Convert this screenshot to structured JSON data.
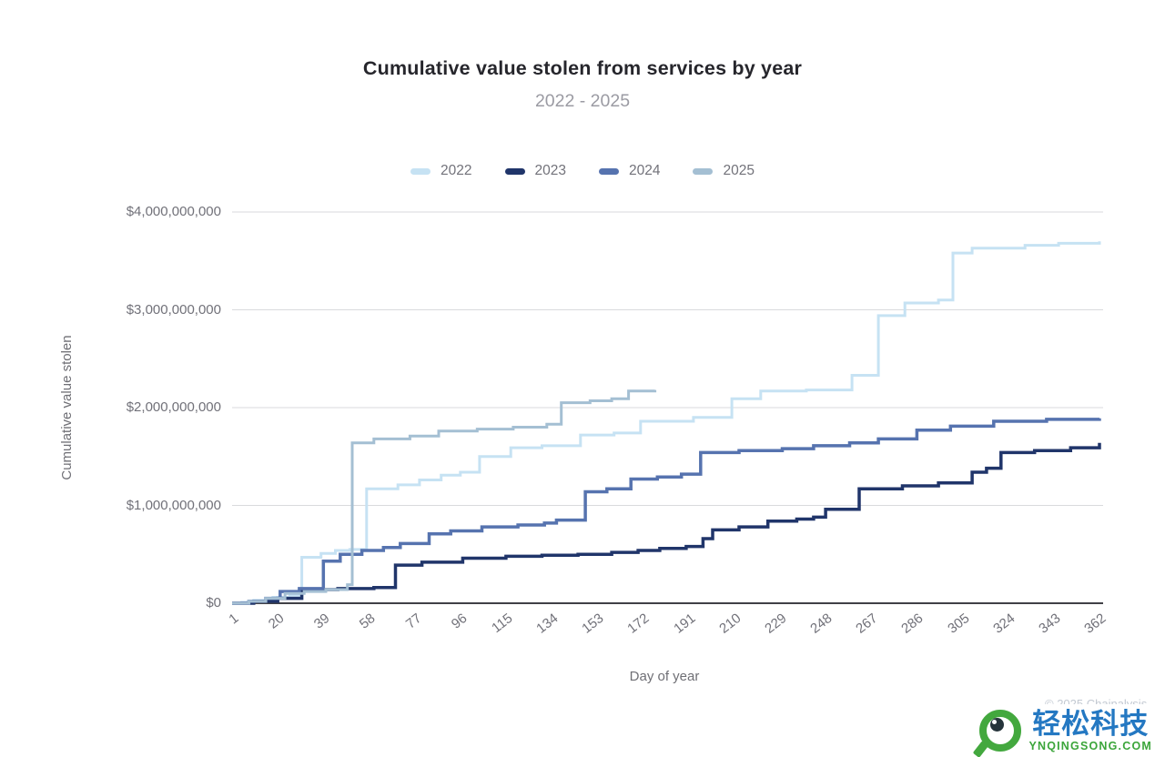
{
  "header": {
    "title": "Cumulative value stolen from services by year",
    "subtitle": "2022 - 2025"
  },
  "axes": {
    "y_axis_title": "Cumulative value stolen",
    "x_axis_title": "Day of year"
  },
  "watermark": {
    "brand": "轻松科技",
    "domain": "YNQINGSONG.COM",
    "attribution": "© 2025 Chainalysis"
  },
  "chart_data": {
    "type": "line",
    "step": true,
    "title": "Cumulative value stolen from services by year",
    "subtitle": "2022 - 2025",
    "xlabel": "Day of year",
    "ylabel": "Cumulative value stolen",
    "grid": true,
    "legend_position": "top",
    "xlim": [
      1,
      362
    ],
    "ylim": [
      0,
      4000000000
    ],
    "x_ticks": [
      1,
      20,
      39,
      58,
      77,
      96,
      115,
      134,
      153,
      172,
      191,
      210,
      229,
      248,
      267,
      286,
      305,
      324,
      343,
      362
    ],
    "y_ticks": [
      {
        "value": 0,
        "label": "$0"
      },
      {
        "value": 1,
        "label": "$1,000,000,000"
      },
      {
        "value": 2,
        "label": "$2,000,000,000"
      },
      {
        "value": 3,
        "label": "$3,000,000,000"
      },
      {
        "value": 4,
        "label": "$4,000,000,000"
      }
    ],
    "y_unit": "USD billions",
    "series": [
      {
        "name": "2022",
        "color": "#c6e2f3",
        "stroke_width": 3,
        "points": [
          [
            1,
            0
          ],
          [
            5,
            0.01
          ],
          [
            10,
            0.03
          ],
          [
            18,
            0.06
          ],
          [
            25,
            0.08
          ],
          [
            30,
            0.47
          ],
          [
            38,
            0.51
          ],
          [
            44,
            0.54
          ],
          [
            50,
            0.55
          ],
          [
            57,
            1.17
          ],
          [
            70,
            1.21
          ],
          [
            79,
            1.26
          ],
          [
            88,
            1.31
          ],
          [
            96,
            1.34
          ],
          [
            104,
            1.5
          ],
          [
            117,
            1.59
          ],
          [
            130,
            1.61
          ],
          [
            146,
            1.72
          ],
          [
            160,
            1.74
          ],
          [
            171,
            1.86
          ],
          [
            193,
            1.9
          ],
          [
            209,
            2.09
          ],
          [
            221,
            2.17
          ],
          [
            240,
            2.18
          ],
          [
            259,
            2.33
          ],
          [
            270,
            2.94
          ],
          [
            281,
            3.07
          ],
          [
            295,
            3.1
          ],
          [
            301,
            3.58
          ],
          [
            309,
            3.63
          ],
          [
            331,
            3.66
          ],
          [
            345,
            3.68
          ],
          [
            362,
            3.7
          ]
        ]
      },
      {
        "name": "2023",
        "color": "#20356a",
        "stroke_width": 3.5,
        "points": [
          [
            1,
            0
          ],
          [
            10,
            0.02
          ],
          [
            20,
            0.05
          ],
          [
            30,
            0.14
          ],
          [
            45,
            0.15
          ],
          [
            60,
            0.16
          ],
          [
            69,
            0.39
          ],
          [
            80,
            0.42
          ],
          [
            97,
            0.46
          ],
          [
            115,
            0.48
          ],
          [
            130,
            0.49
          ],
          [
            145,
            0.5
          ],
          [
            159,
            0.52
          ],
          [
            170,
            0.54
          ],
          [
            179,
            0.56
          ],
          [
            190,
            0.58
          ],
          [
            197,
            0.66
          ],
          [
            201,
            0.75
          ],
          [
            212,
            0.78
          ],
          [
            224,
            0.84
          ],
          [
            236,
            0.86
          ],
          [
            243,
            0.88
          ],
          [
            248,
            0.96
          ],
          [
            262,
            1.17
          ],
          [
            280,
            1.2
          ],
          [
            295,
            1.23
          ],
          [
            309,
            1.34
          ],
          [
            315,
            1.38
          ],
          [
            321,
            1.54
          ],
          [
            335,
            1.56
          ],
          [
            350,
            1.59
          ],
          [
            362,
            1.64
          ]
        ]
      },
      {
        "name": "2024",
        "color": "#5673af",
        "stroke_width": 3.5,
        "points": [
          [
            1,
            0
          ],
          [
            8,
            0.02
          ],
          [
            15,
            0.05
          ],
          [
            21,
            0.12
          ],
          [
            29,
            0.15
          ],
          [
            39,
            0.43
          ],
          [
            46,
            0.5
          ],
          [
            55,
            0.54
          ],
          [
            64,
            0.57
          ],
          [
            71,
            0.61
          ],
          [
            83,
            0.71
          ],
          [
            92,
            0.74
          ],
          [
            105,
            0.78
          ],
          [
            120,
            0.8
          ],
          [
            131,
            0.82
          ],
          [
            136,
            0.85
          ],
          [
            148,
            1.14
          ],
          [
            157,
            1.17
          ],
          [
            167,
            1.27
          ],
          [
            178,
            1.29
          ],
          [
            188,
            1.32
          ],
          [
            196,
            1.54
          ],
          [
            212,
            1.56
          ],
          [
            230,
            1.58
          ],
          [
            243,
            1.61
          ],
          [
            258,
            1.64
          ],
          [
            270,
            1.68
          ],
          [
            286,
            1.77
          ],
          [
            300,
            1.81
          ],
          [
            318,
            1.86
          ],
          [
            340,
            1.88
          ],
          [
            362,
            1.89
          ]
        ]
      },
      {
        "name": "2025",
        "color": "#a4bfd3",
        "stroke_width": 3,
        "points": [
          [
            1,
            0
          ],
          [
            8,
            0.02
          ],
          [
            15,
            0.05
          ],
          [
            23,
            0.1
          ],
          [
            31,
            0.12
          ],
          [
            40,
            0.14
          ],
          [
            49,
            0.19
          ],
          [
            51,
            1.64
          ],
          [
            60,
            1.68
          ],
          [
            75,
            1.71
          ],
          [
            87,
            1.76
          ],
          [
            103,
            1.78
          ],
          [
            118,
            1.8
          ],
          [
            132,
            1.83
          ],
          [
            138,
            2.05
          ],
          [
            150,
            2.07
          ],
          [
            159,
            2.09
          ],
          [
            166,
            2.17
          ],
          [
            177,
            2.18
          ]
        ]
      }
    ],
    "annotations": {
      "series_end_values_usd_billions": {
        "2022": 3.7,
        "2023": 1.64,
        "2024": 1.89,
        "2025": 2.18
      },
      "note_2025": "partial year, line ends near day 177"
    }
  },
  "style_colors": {
    "gridline": "#d9dadd",
    "axis_baseline": "#404046",
    "tick_text": "#717179",
    "title_text": "#26262c",
    "subtitle_text": "#9b9ba3"
  }
}
